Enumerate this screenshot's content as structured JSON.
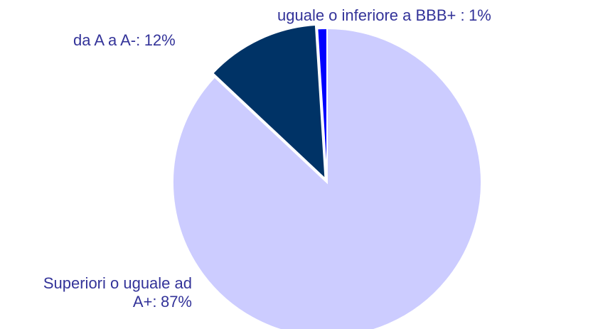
{
  "chart_data": {
    "type": "pie",
    "categories": [
      "Superiori o uguale ad A+:",
      "da A a A-:",
      "uguale o inferiore a BBB+ :"
    ],
    "values": [
      87,
      12,
      1
    ],
    "value_labels": [
      "87%",
      "12%",
      "1%"
    ],
    "colors": [
      "#ccccff",
      "#003366",
      "#0000ff"
    ]
  }
}
